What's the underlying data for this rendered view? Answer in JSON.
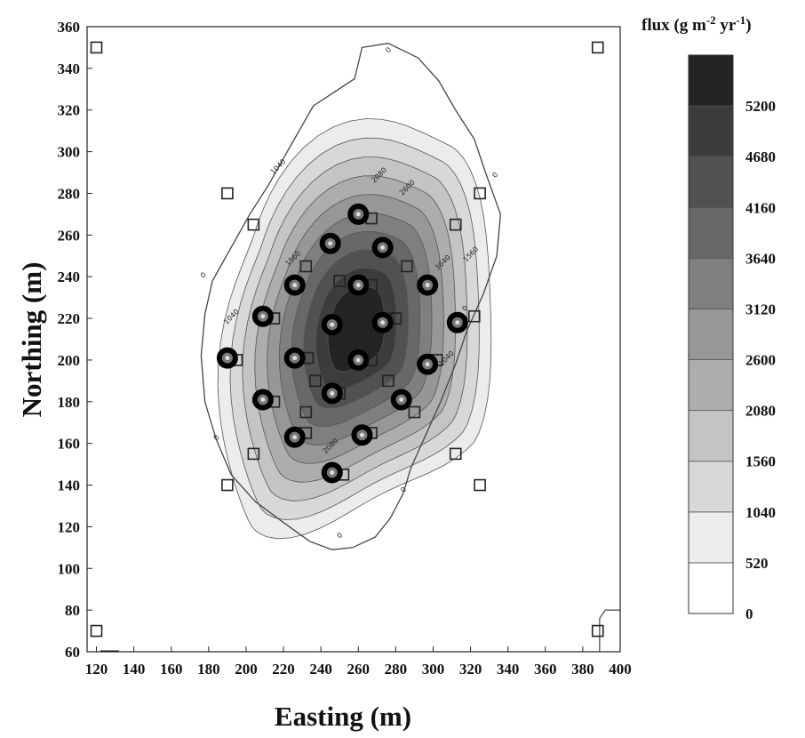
{
  "chart_data": {
    "type": "contour",
    "title": "",
    "xlabel": "Easting (m)",
    "ylabel": "Northing (m)",
    "xlim": [
      115,
      400
    ],
    "ylim": [
      60,
      360
    ],
    "x_ticks": [
      120,
      140,
      160,
      180,
      200,
      220,
      240,
      260,
      280,
      300,
      320,
      340,
      360,
      380,
      400
    ],
    "y_ticks": [
      60,
      80,
      100,
      120,
      140,
      160,
      180,
      200,
      220,
      240,
      260,
      280,
      300,
      320,
      340,
      360
    ],
    "colorbar": {
      "title_main": "flux (g m",
      "title_sup1": "-2",
      "title_mid": " yr",
      "title_sup2": "-1",
      "title_end": ")",
      "levels": [
        0,
        520,
        1040,
        1560,
        2080,
        2600,
        3120,
        3640,
        4160,
        4680,
        5200
      ],
      "labels": [
        "0",
        "520",
        "1040",
        "1560",
        "2080",
        "2600",
        "3120",
        "3640",
        "4160",
        "4680",
        "5200"
      ],
      "colors": [
        "#ffffff",
        "#ececec",
        "#d8d8d8",
        "#c4c4c4",
        "#adadad",
        "#979797",
        "#7f7f7f",
        "#686868",
        "#515151",
        "#3c3c3c",
        "#242424"
      ]
    },
    "contour_labels": [
      "0",
      "0",
      "0",
      "0",
      "0",
      "0",
      "0",
      "1040",
      "1040",
      "1560",
      "1560",
      "2080",
      "2080",
      "2600",
      "3640",
      "1040"
    ],
    "high_flux_points": [
      {
        "x": 260,
        "y": 270
      },
      {
        "x": 245,
        "y": 256
      },
      {
        "x": 273,
        "y": 254
      },
      {
        "x": 226,
        "y": 236
      },
      {
        "x": 260,
        "y": 236
      },
      {
        "x": 297,
        "y": 236
      },
      {
        "x": 209,
        "y": 221
      },
      {
        "x": 246,
        "y": 217
      },
      {
        "x": 273,
        "y": 218
      },
      {
        "x": 313,
        "y": 218
      },
      {
        "x": 190,
        "y": 201
      },
      {
        "x": 226,
        "y": 201
      },
      {
        "x": 260,
        "y": 200
      },
      {
        "x": 297,
        "y": 198
      },
      {
        "x": 209,
        "y": 181
      },
      {
        "x": 246,
        "y": 184
      },
      {
        "x": 283,
        "y": 181
      },
      {
        "x": 226,
        "y": 163
      },
      {
        "x": 262,
        "y": 164
      },
      {
        "x": 246,
        "y": 146
      }
    ],
    "sample_points": [
      {
        "x": 120,
        "y": 350
      },
      {
        "x": 388,
        "y": 350
      },
      {
        "x": 190,
        "y": 280
      },
      {
        "x": 325,
        "y": 280
      },
      {
        "x": 204,
        "y": 265
      },
      {
        "x": 312,
        "y": 265
      },
      {
        "x": 267,
        "y": 268
      },
      {
        "x": 232,
        "y": 245
      },
      {
        "x": 286,
        "y": 245
      },
      {
        "x": 250,
        "y": 238
      },
      {
        "x": 267,
        "y": 236
      },
      {
        "x": 322,
        "y": 221
      },
      {
        "x": 215,
        "y": 220
      },
      {
        "x": 250,
        "y": 215
      },
      {
        "x": 280,
        "y": 220
      },
      {
        "x": 195,
        "y": 200
      },
      {
        "x": 233,
        "y": 201
      },
      {
        "x": 250,
        "y": 209
      },
      {
        "x": 267,
        "y": 200
      },
      {
        "x": 302,
        "y": 200
      },
      {
        "x": 237,
        "y": 190
      },
      {
        "x": 276,
        "y": 190
      },
      {
        "x": 215,
        "y": 180
      },
      {
        "x": 232,
        "y": 175
      },
      {
        "x": 250,
        "y": 184
      },
      {
        "x": 290,
        "y": 175
      },
      {
        "x": 232,
        "y": 165
      },
      {
        "x": 267,
        "y": 165
      },
      {
        "x": 204,
        "y": 155
      },
      {
        "x": 312,
        "y": 155
      },
      {
        "x": 252,
        "y": 145
      },
      {
        "x": 190,
        "y": 140
      },
      {
        "x": 325,
        "y": 140
      },
      {
        "x": 120,
        "y": 70
      },
      {
        "x": 388,
        "y": 70
      }
    ]
  }
}
